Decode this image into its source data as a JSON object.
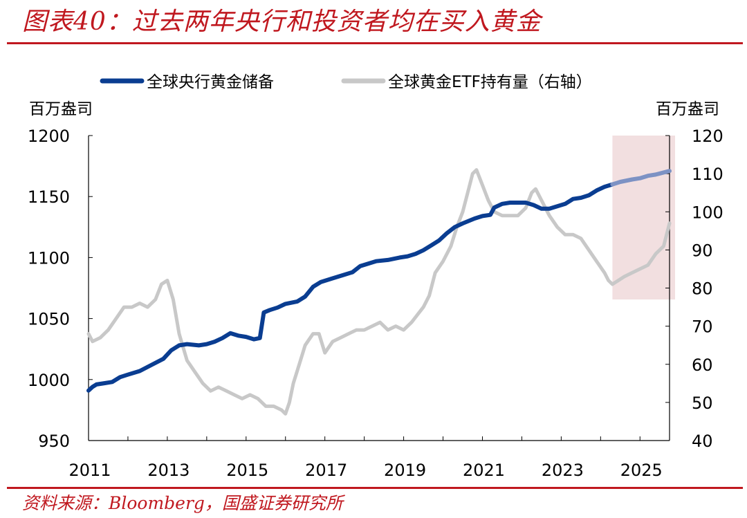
{
  "header": {
    "title": "图表40：过去两年央行和投资者均在买入黄金"
  },
  "footer": {
    "source": "资料来源：Bloomberg，国盛证券研究所"
  },
  "colors": {
    "accent": "#c0181f",
    "series_left": "#0a3d91",
    "series_left_highlight": "#7d92c4",
    "series_right": "#c8c8c8",
    "highlight_band": "#f2dfe0"
  },
  "chart_data": {
    "type": "line",
    "title": "",
    "xlabel": "",
    "y_left_label": "百万盎司",
    "y_right_label": "百万盎司",
    "xticks": [
      "2011",
      "2013",
      "2015",
      "2017",
      "2019",
      "2021",
      "2023",
      "2025"
    ],
    "xlim": [
      2011,
      2025.75
    ],
    "y_left_ticks": [
      "1200",
      "1150",
      "1100",
      "1050",
      "1000",
      "950"
    ],
    "y_left_lim": [
      950,
      1200
    ],
    "y_right_ticks": [
      "120",
      "110",
      "100",
      "90",
      "80",
      "70",
      "60",
      "50",
      "40"
    ],
    "y_right_lim": [
      40,
      120
    ],
    "legend_position": "top",
    "highlight_region": [
      2024.3,
      2025.75
    ],
    "series": [
      {
        "name": "全球央行黄金储备",
        "axis": "left",
        "x": [
          2011.0,
          2011.1,
          2011.2,
          2011.4,
          2011.6,
          2011.8,
          2012.0,
          2012.3,
          2012.6,
          2012.9,
          2013.1,
          2013.3,
          2013.5,
          2013.8,
          2014.0,
          2014.2,
          2014.4,
          2014.6,
          2014.8,
          2015.0,
          2015.2,
          2015.35,
          2015.45,
          2015.6,
          2015.8,
          2016.0,
          2016.3,
          2016.5,
          2016.7,
          2016.9,
          2017.2,
          2017.5,
          2017.7,
          2017.9,
          2018.1,
          2018.3,
          2018.6,
          2018.9,
          2019.1,
          2019.3,
          2019.5,
          2019.7,
          2019.9,
          2020.1,
          2020.3,
          2020.5,
          2020.8,
          2021.0,
          2021.2,
          2021.3,
          2021.5,
          2021.7,
          2021.9,
          2022.1,
          2022.3,
          2022.5,
          2022.7,
          2022.9,
          2023.1,
          2023.3,
          2023.5,
          2023.7,
          2023.9,
          2024.1,
          2024.3,
          2024.5,
          2024.8,
          2025.0,
          2025.2,
          2025.4,
          2025.75
        ],
        "values": [
          991,
          994,
          996,
          997,
          998,
          1002,
          1004,
          1007,
          1012,
          1017,
          1024,
          1028,
          1029,
          1028,
          1029,
          1031,
          1034,
          1038,
          1036,
          1035,
          1033,
          1034,
          1055,
          1057,
          1059,
          1062,
          1064,
          1068,
          1076,
          1080,
          1083,
          1086,
          1088,
          1093,
          1095,
          1097,
          1098,
          1100,
          1101,
          1103,
          1106,
          1110,
          1114,
          1120,
          1125,
          1128,
          1132,
          1134,
          1135,
          1141,
          1144,
          1145,
          1145,
          1145,
          1143,
          1140,
          1140,
          1142,
          1144,
          1148,
          1149,
          1151,
          1155,
          1158,
          1160,
          1162,
          1164,
          1165,
          1167,
          1168,
          1171
        ]
      },
      {
        "name": "全球黄金ETF持有量（右轴）",
        "axis": "right",
        "x": [
          2011.0,
          2011.1,
          2011.3,
          2011.5,
          2011.7,
          2011.9,
          2012.1,
          2012.3,
          2012.5,
          2012.7,
          2012.85,
          2013.0,
          2013.15,
          2013.3,
          2013.5,
          2013.7,
          2013.9,
          2014.1,
          2014.3,
          2014.5,
          2014.7,
          2014.9,
          2015.1,
          2015.3,
          2015.5,
          2015.7,
          2015.9,
          2016.0,
          2016.1,
          2016.2,
          2016.35,
          2016.5,
          2016.7,
          2016.85,
          2017.0,
          2017.2,
          2017.4,
          2017.6,
          2017.8,
          2018.0,
          2018.2,
          2018.4,
          2018.6,
          2018.8,
          2019.0,
          2019.2,
          2019.35,
          2019.5,
          2019.65,
          2019.8,
          2020.0,
          2020.2,
          2020.35,
          2020.5,
          2020.65,
          2020.75,
          2020.85,
          2021.0,
          2021.15,
          2021.3,
          2021.5,
          2021.7,
          2021.9,
          2022.1,
          2022.25,
          2022.35,
          2022.5,
          2022.7,
          2022.9,
          2023.1,
          2023.3,
          2023.5,
          2023.7,
          2023.9,
          2024.1,
          2024.2,
          2024.3,
          2024.45,
          2024.6,
          2024.8,
          2025.0,
          2025.2,
          2025.4,
          2025.6,
          2025.75
        ],
        "values": [
          68,
          66,
          67,
          69,
          72,
          75,
          75,
          76,
          75,
          77,
          81,
          82,
          77,
          68,
          61,
          58,
          55,
          53,
          54,
          53,
          52,
          51,
          52,
          51,
          49,
          49,
          48,
          47,
          50,
          55,
          60,
          65,
          68,
          68,
          63,
          66,
          67,
          68,
          69,
          69,
          70,
          71,
          69,
          70,
          69,
          71,
          73,
          75,
          78,
          84,
          87,
          91,
          96,
          100,
          106,
          110,
          111,
          107,
          103,
          100,
          99,
          99,
          99,
          101,
          105,
          106,
          103,
          99,
          96,
          94,
          94,
          93,
          90,
          87,
          84,
          82,
          81,
          82,
          83,
          84,
          85,
          86,
          89,
          91,
          97
        ]
      }
    ]
  }
}
